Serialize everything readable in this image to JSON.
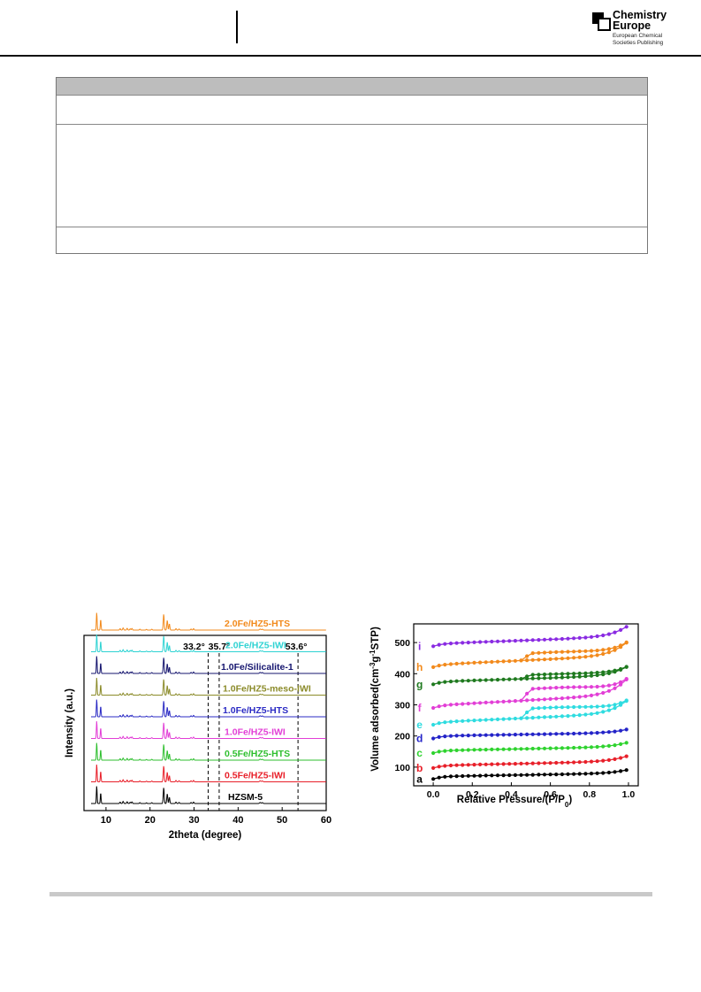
{
  "header": {
    "publisher_title": "Chemistry Europe",
    "publisher_subtitle_line1": "European Chemical",
    "publisher_subtitle_line2": "Societies Publishing"
  },
  "chart_data": [
    {
      "type": "line",
      "title": "",
      "xlabel": "2theta (degree)",
      "ylabel": "Intensity (a.u.)",
      "xlim": [
        5,
        60
      ],
      "xticks": [
        10,
        20,
        30,
        40,
        50,
        60
      ],
      "grid": false,
      "reference_lines": [
        {
          "x": 33.2,
          "label": "33.2°"
        },
        {
          "x": 35.7,
          "label": "35.7°"
        },
        {
          "x": 53.6,
          "label": "53.6°"
        }
      ],
      "series": [
        {
          "name": "HZSM-5",
          "color": "#000000"
        },
        {
          "name": "0.5Fe/HZ5-IWI",
          "color": "#e8202a"
        },
        {
          "name": "0.5Fe/HZ5-HTS",
          "color": "#2fbf2f"
        },
        {
          "name": "1.0Fe/HZ5-IWI",
          "color": "#e23fd6"
        },
        {
          "name": "1.0Fe/HZ5-HTS",
          "color": "#2b2bc4"
        },
        {
          "name": "1.0Fe/HZ5-meso-IWI",
          "color": "#8b8b2a"
        },
        {
          "name": "1.0Fe/Silicalite-1",
          "color": "#14146e"
        },
        {
          "name": "2.0Fe/HZ5-IWI",
          "color": "#2fd3d3"
        },
        {
          "name": "2.0Fe/HZ5-HTS",
          "color": "#f28a1c"
        }
      ]
    },
    {
      "type": "line",
      "title": "",
      "xlabel": "Relative Pressure/(P/P0)",
      "ylabel": "Volume adsorbed(cm-3g-1STP)",
      "xlim": [
        -0.1,
        1.05
      ],
      "ylim": [
        40,
        560
      ],
      "xticks": [
        0.0,
        0.2,
        0.4,
        0.6,
        0.8,
        1.0
      ],
      "yticks": [
        100,
        200,
        300,
        400,
        500
      ],
      "grid": false,
      "series": [
        {
          "name": "a",
          "color": "#000000",
          "base": 62,
          "end": 92,
          "hyst": 0
        },
        {
          "name": "b",
          "color": "#e8202a",
          "base": 97,
          "end": 137,
          "hyst": 0
        },
        {
          "name": "c",
          "color": "#2fd32f",
          "base": 145,
          "end": 180,
          "hyst": 0
        },
        {
          "name": "d",
          "color": "#2424c8",
          "base": 192,
          "end": 222,
          "hyst": 0
        },
        {
          "name": "e",
          "color": "#2fdce0",
          "base": 236,
          "end": 318,
          "hyst": 30
        },
        {
          "name": "f",
          "color": "#e23fd6",
          "base": 290,
          "end": 388,
          "hyst": 36
        },
        {
          "name": "g",
          "color": "#1f7a1f",
          "base": 366,
          "end": 425,
          "hyst": 12
        },
        {
          "name": "h",
          "color": "#f28a1c",
          "base": 421,
          "end": 505,
          "hyst": 22
        },
        {
          "name": "i",
          "color": "#8a2be2",
          "base": 488,
          "end": 555,
          "hyst": 0
        }
      ]
    }
  ]
}
